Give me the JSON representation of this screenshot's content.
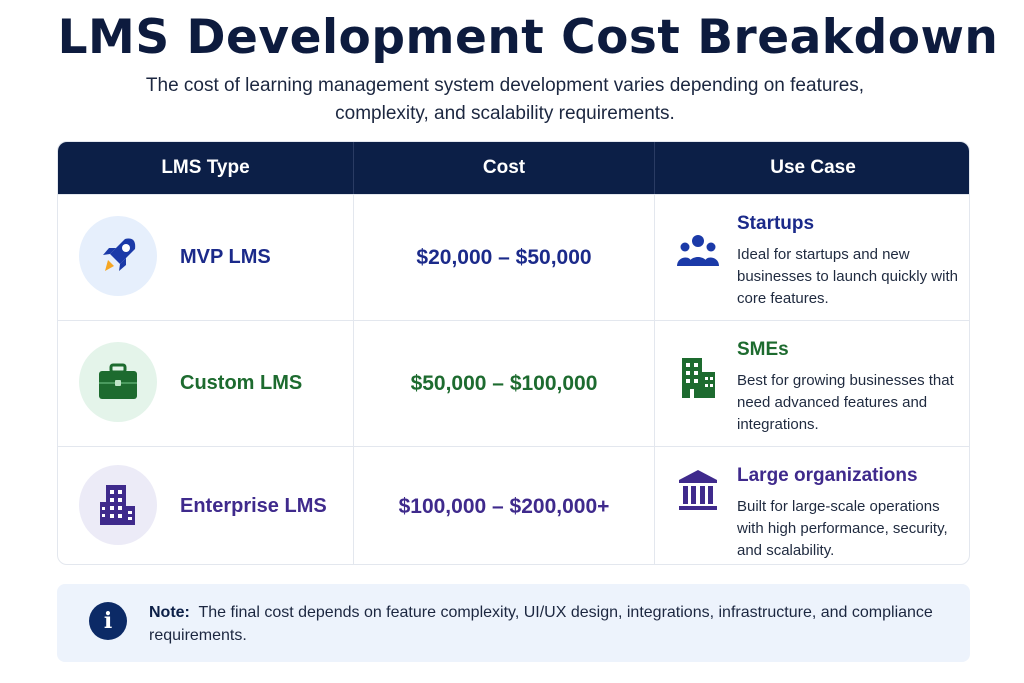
{
  "header": {
    "title": "LMS Development Cost Breakdown",
    "subtitle": "The cost of learning management system development varies depending on features, complexity, and scalability requirements."
  },
  "table": {
    "columns": [
      "LMS Type",
      "Cost",
      "Use Case"
    ],
    "rows": [
      {
        "type": "MVP LMS",
        "cost": "$20,000 – $50,000",
        "use_title": "Startups",
        "use_desc": "Ideal for startups and new businesses to launch quickly with core features.",
        "icon": "rocket-icon",
        "use_icon": "people-icon",
        "color": "#1b2a8a",
        "icon_bg": "#e6effc"
      },
      {
        "type": "Custom LMS",
        "cost": "$50,000 – $100,000",
        "use_title": "SMEs",
        "use_desc": "Best for growing businesses that need advanced features and integrations.",
        "icon": "briefcase-icon",
        "use_icon": "office-building-icon",
        "color": "#1d6b2f",
        "icon_bg": "#e4f4ea"
      },
      {
        "type": "Enterprise LMS",
        "cost": "$100,000 – $200,000+",
        "use_title": "Large organizations",
        "use_desc": "Built for large-scale operations with high performance, security, and scalability.",
        "icon": "skyscraper-icon",
        "use_icon": "institution-icon",
        "color": "#3f2a8c",
        "icon_bg": "#ecebf7"
      }
    ]
  },
  "note": {
    "label": "Note:",
    "text": "The final cost depends on feature complexity, UI/UX design, integrations, infrastructure, and compliance requirements.",
    "icon": "info-icon"
  }
}
